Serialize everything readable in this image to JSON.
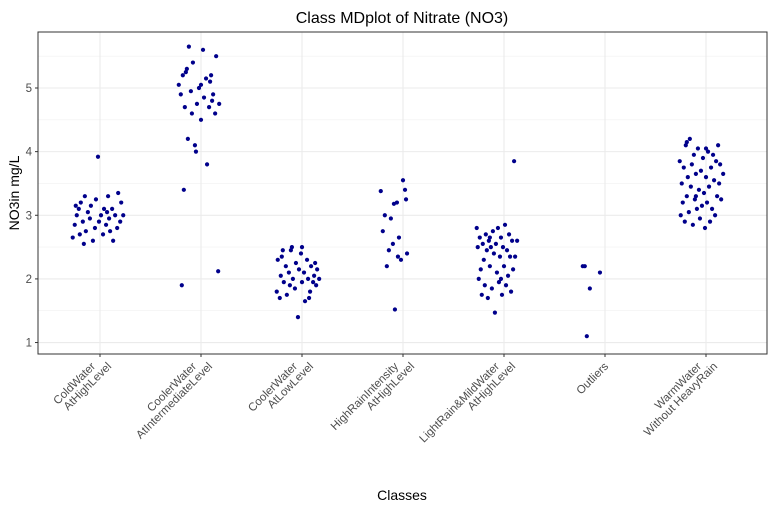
{
  "chart_data": {
    "type": "scatter",
    "title": "Class MDplot of Nitrate (NO3)",
    "xlabel": "Classes",
    "ylabel": "NO3in mg/L",
    "ylim": [
      0.82,
      5.88
    ],
    "yticks": [
      1,
      2,
      3,
      4,
      5
    ],
    "grid": true,
    "point_color": "#00008B",
    "categories": [
      [
        "ColdWater",
        "AtHighLevel"
      ],
      [
        "CoolerWater",
        "AtIntermediateLevel"
      ],
      [
        "CoolerWater",
        "AtLowLevel"
      ],
      [
        "HighRainIntensity",
        "AtHighLevel"
      ],
      [
        "LightRain&MildWater",
        "AtHighLevel"
      ],
      [
        "Outliers"
      ],
      [
        "WarmWater",
        "Without HeavyRain"
      ]
    ],
    "series": [
      {
        "category_index": 0,
        "points": [
          [
            -0.27,
            2.65
          ],
          [
            -0.25,
            2.85
          ],
          [
            -0.23,
            3.0
          ],
          [
            -0.21,
            3.1
          ],
          [
            -0.2,
            2.7
          ],
          [
            -0.19,
            3.2
          ],
          [
            -0.17,
            2.9
          ],
          [
            -0.15,
            3.3
          ],
          [
            -0.14,
            2.75
          ],
          [
            -0.12,
            3.05
          ],
          [
            -0.1,
            2.95
          ],
          [
            -0.09,
            3.15
          ],
          [
            -0.07,
            2.6
          ],
          [
            -0.05,
            2.8
          ],
          [
            -0.04,
            3.25
          ],
          [
            -0.02,
            3.92
          ],
          [
            -0.01,
            2.9
          ],
          [
            0.01,
            3.0
          ],
          [
            0.03,
            2.7
          ],
          [
            0.04,
            3.1
          ],
          [
            0.06,
            2.85
          ],
          [
            0.07,
            3.05
          ],
          [
            0.09,
            2.95
          ],
          [
            0.1,
            2.75
          ],
          [
            0.12,
            3.1
          ],
          [
            0.13,
            2.6
          ],
          [
            0.15,
            3.0
          ],
          [
            0.17,
            2.8
          ],
          [
            0.18,
            3.35
          ],
          [
            0.2,
            2.9
          ],
          [
            0.21,
            3.2
          ],
          [
            0.23,
            3.0
          ],
          [
            -0.24,
            3.15
          ],
          [
            -0.16,
            2.55
          ],
          [
            0.08,
            3.3
          ]
        ]
      },
      {
        "category_index": 1,
        "points": [
          [
            -0.22,
            5.05
          ],
          [
            -0.2,
            4.9
          ],
          [
            -0.19,
            1.9
          ],
          [
            -0.18,
            5.2
          ],
          [
            -0.17,
            3.4
          ],
          [
            -0.16,
            4.7
          ],
          [
            -0.14,
            5.3
          ],
          [
            -0.13,
            4.2
          ],
          [
            -0.12,
            5.65
          ],
          [
            -0.1,
            4.95
          ],
          [
            -0.09,
            4.6
          ],
          [
            -0.08,
            5.4
          ],
          [
            -0.06,
            4.1
          ],
          [
            -0.05,
            4.0
          ],
          [
            -0.04,
            4.75
          ],
          [
            -0.02,
            5.0
          ],
          [
            0.0,
            4.5
          ],
          [
            0.02,
            5.6
          ],
          [
            0.03,
            4.85
          ],
          [
            0.05,
            5.15
          ],
          [
            0.06,
            3.8
          ],
          [
            0.08,
            4.7
          ],
          [
            0.09,
            5.1
          ],
          [
            0.11,
            4.8
          ],
          [
            0.12,
            4.9
          ],
          [
            0.14,
            4.6
          ],
          [
            0.15,
            5.5
          ],
          [
            0.17,
            2.12
          ],
          [
            0.18,
            4.75
          ],
          [
            -0.15,
            5.25
          ],
          [
            0.0,
            5.05
          ],
          [
            0.1,
            5.2
          ]
        ]
      },
      {
        "category_index": 2,
        "points": [
          [
            -0.25,
            1.8
          ],
          [
            -0.24,
            2.3
          ],
          [
            -0.22,
            1.7
          ],
          [
            -0.21,
            2.05
          ],
          [
            -0.19,
            2.45
          ],
          [
            -0.18,
            1.95
          ],
          [
            -0.16,
            2.2
          ],
          [
            -0.15,
            1.75
          ],
          [
            -0.13,
            2.1
          ],
          [
            -0.12,
            1.9
          ],
          [
            -0.1,
            2.5
          ],
          [
            -0.09,
            2.0
          ],
          [
            -0.07,
            1.85
          ],
          [
            -0.06,
            2.25
          ],
          [
            -0.04,
            1.4
          ],
          [
            -0.03,
            2.15
          ],
          [
            -0.01,
            2.4
          ],
          [
            0.0,
            1.95
          ],
          [
            0.02,
            2.1
          ],
          [
            0.03,
            1.65
          ],
          [
            0.05,
            2.3
          ],
          [
            0.06,
            2.0
          ],
          [
            0.08,
            1.8
          ],
          [
            0.09,
            2.2
          ],
          [
            0.11,
            1.95
          ],
          [
            0.12,
            2.05
          ],
          [
            0.14,
            1.9
          ],
          [
            0.15,
            2.15
          ],
          [
            0.17,
            2.0
          ],
          [
            -0.2,
            2.35
          ],
          [
            -0.11,
            2.45
          ],
          [
            0.0,
            2.5
          ],
          [
            0.07,
            1.7
          ],
          [
            0.13,
            2.25
          ]
        ]
      },
      {
        "category_index": 3,
        "points": [
          [
            -0.22,
            3.38
          ],
          [
            -0.2,
            2.75
          ],
          [
            -0.18,
            3.0
          ],
          [
            -0.16,
            2.2
          ],
          [
            -0.14,
            2.45
          ],
          [
            -0.12,
            2.95
          ],
          [
            -0.1,
            2.55
          ],
          [
            -0.08,
            1.52
          ],
          [
            -0.06,
            3.2
          ],
          [
            -0.04,
            2.65
          ],
          [
            -0.02,
            2.3
          ],
          [
            0.0,
            3.55
          ],
          [
            0.02,
            3.4
          ],
          [
            0.04,
            2.4
          ],
          [
            -0.09,
            3.18
          ],
          [
            0.03,
            3.25
          ],
          [
            -0.05,
            2.35
          ]
        ]
      },
      {
        "category_index": 4,
        "points": [
          [
            -0.27,
            2.8
          ],
          [
            -0.26,
            2.5
          ],
          [
            -0.25,
            2.0
          ],
          [
            -0.24,
            2.65
          ],
          [
            -0.22,
            1.75
          ],
          [
            -0.21,
            2.55
          ],
          [
            -0.2,
            2.3
          ],
          [
            -0.19,
            1.9
          ],
          [
            -0.18,
            2.7
          ],
          [
            -0.17,
            2.45
          ],
          [
            -0.16,
            1.7
          ],
          [
            -0.15,
            2.6
          ],
          [
            -0.14,
            2.2
          ],
          [
            -0.13,
            2.5
          ],
          [
            -0.12,
            1.85
          ],
          [
            -0.11,
            2.75
          ],
          [
            -0.1,
            2.4
          ],
          [
            -0.09,
            1.47
          ],
          [
            -0.08,
            2.55
          ],
          [
            -0.07,
            2.1
          ],
          [
            -0.06,
            2.8
          ],
          [
            -0.05,
            1.95
          ],
          [
            -0.04,
            2.35
          ],
          [
            -0.03,
            2.65
          ],
          [
            -0.02,
            1.75
          ],
          [
            -0.01,
            2.5
          ],
          [
            0.0,
            2.2
          ],
          [
            0.01,
            2.85
          ],
          [
            0.02,
            1.9
          ],
          [
            0.03,
            2.45
          ],
          [
            0.04,
            2.05
          ],
          [
            0.05,
            2.7
          ],
          [
            0.06,
            2.35
          ],
          [
            0.07,
            1.8
          ],
          [
            0.08,
            2.6
          ],
          [
            0.09,
            2.15
          ],
          [
            0.1,
            3.85
          ],
          [
            0.11,
            2.35
          ],
          [
            0.13,
            2.6
          ],
          [
            -0.23,
            2.15
          ],
          [
            -0.14,
            2.65
          ],
          [
            -0.03,
            2.0
          ]
        ]
      },
      {
        "category_index": 5,
        "points": [
          [
            -0.2,
            2.2
          ],
          [
            -0.18,
            1.1
          ],
          [
            -0.15,
            1.85
          ],
          [
            -0.22,
            2.2
          ],
          [
            -0.05,
            2.1
          ]
        ]
      },
      {
        "category_index": 6,
        "points": [
          [
            -0.26,
            3.85
          ],
          [
            -0.25,
            3.0
          ],
          [
            -0.24,
            3.5
          ],
          [
            -0.23,
            3.2
          ],
          [
            -0.22,
            3.75
          ],
          [
            -0.21,
            2.9
          ],
          [
            -0.2,
            4.1
          ],
          [
            -0.19,
            3.3
          ],
          [
            -0.18,
            3.6
          ],
          [
            -0.17,
            3.05
          ],
          [
            -0.16,
            4.2
          ],
          [
            -0.15,
            3.45
          ],
          [
            -0.14,
            3.8
          ],
          [
            -0.13,
            2.85
          ],
          [
            -0.12,
            3.95
          ],
          [
            -0.11,
            3.25
          ],
          [
            -0.1,
            3.65
          ],
          [
            -0.09,
            3.1
          ],
          [
            -0.08,
            4.05
          ],
          [
            -0.07,
            3.4
          ],
          [
            -0.06,
            2.95
          ],
          [
            -0.05,
            3.7
          ],
          [
            -0.04,
            3.15
          ],
          [
            -0.03,
            3.9
          ],
          [
            -0.02,
            3.35
          ],
          [
            -0.01,
            2.8
          ],
          [
            0.0,
            3.6
          ],
          [
            0.01,
            3.2
          ],
          [
            0.02,
            4.0
          ],
          [
            0.03,
            3.45
          ],
          [
            0.04,
            2.9
          ],
          [
            0.05,
            3.75
          ],
          [
            0.06,
            3.1
          ],
          [
            0.07,
            3.95
          ],
          [
            0.08,
            3.55
          ],
          [
            0.09,
            3.0
          ],
          [
            0.1,
            3.85
          ],
          [
            0.11,
            3.3
          ],
          [
            0.12,
            4.1
          ],
          [
            0.13,
            3.5
          ],
          [
            0.14,
            3.8
          ],
          [
            0.15,
            3.25
          ],
          [
            0.17,
            3.65
          ],
          [
            -0.19,
            4.15
          ],
          [
            -0.1,
            3.3
          ],
          [
            0.0,
            4.05
          ]
        ]
      }
    ]
  }
}
